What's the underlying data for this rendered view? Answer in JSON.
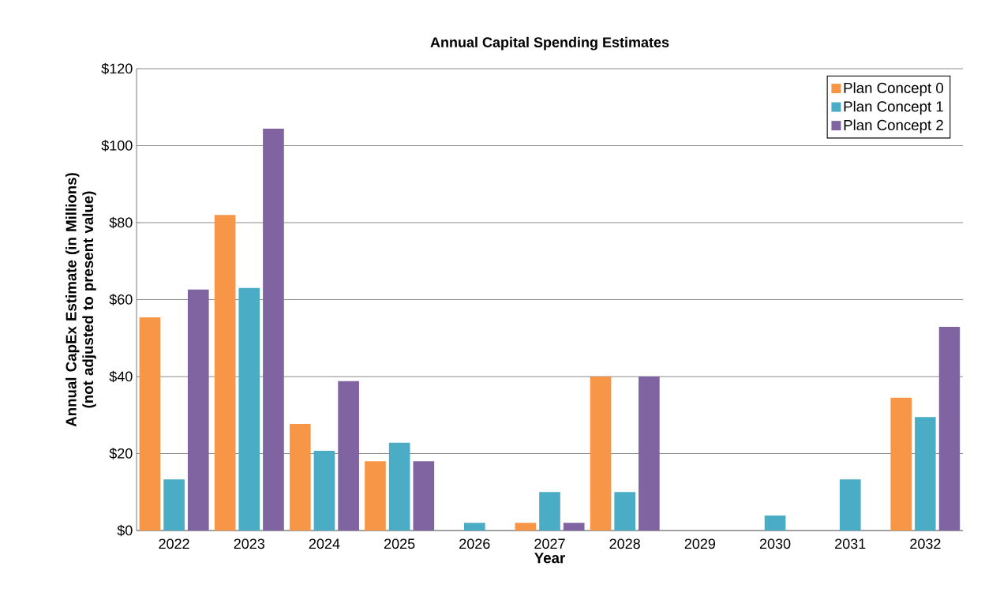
{
  "chart_data": {
    "type": "bar",
    "title": "Annual Capital Spending Estimates",
    "xlabel": "Year",
    "ylabel": "Annual CapEx Estimate (in Millions) (not adjusted to present value)",
    "categories": [
      "2022",
      "2023",
      "2024",
      "2025",
      "2026",
      "2027",
      "2028",
      "2029",
      "2030",
      "2031",
      "2032"
    ],
    "series": [
      {
        "name": "Plan Concept 0",
        "color": "#f79646",
        "values": [
          55.4,
          82,
          27.7,
          18,
          0,
          2,
          40,
          0,
          0,
          0,
          34.5
        ]
      },
      {
        "name": "Plan Concept 1",
        "color": "#4bacc6",
        "values": [
          13.3,
          63,
          20.7,
          22.8,
          2,
          10,
          10,
          0,
          3.9,
          13.3,
          29.5
        ]
      },
      {
        "name": "Plan Concept 2",
        "color": "#8064a2",
        "values": [
          62.6,
          104.4,
          38.8,
          18,
          0,
          2,
          40,
          0,
          0,
          0,
          52.9
        ]
      }
    ],
    "ylim": [
      0,
      120
    ],
    "yticks": [
      {
        "value": 0,
        "label": "$0"
      },
      {
        "value": 20,
        "label": "$20"
      },
      {
        "value": 40,
        "label": "$40"
      },
      {
        "value": 60,
        "label": "$60"
      },
      {
        "value": 80,
        "label": "$80"
      },
      {
        "value": 100,
        "label": "$100"
      },
      {
        "value": 120,
        "label": "$120"
      }
    ],
    "grid": "y",
    "legend": "top right"
  }
}
